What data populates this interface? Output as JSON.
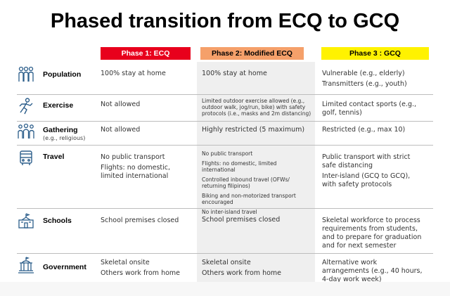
{
  "title": "Phased transition from ECQ to GCQ",
  "phases": [
    "Phase 1: ECQ",
    "Phase 2: Modified ECQ",
    "Phase 3 : GCQ"
  ],
  "colors": {
    "phase1": "#e8001c",
    "phase2": "#f5a06a",
    "phase3": "#fff200",
    "icon": "#2b5d8a"
  },
  "rows": {
    "population": {
      "label": "Population",
      "icon": "people-icon",
      "p1": "100% stay at home",
      "p2": "100% stay at home",
      "p3_1": "Vulnerable (e.g., elderly)",
      "p3_2": "Transmitters (e.g., youth)"
    },
    "exercise": {
      "label": "Exercise",
      "icon": "runner-icon",
      "p1": "Not allowed",
      "p2_1": "Limited outdoor exercise allowed (e.g.,",
      "p2_2": "outdoor walk, jog/run, bike) with safety",
      "p2_3": "protocols (i.e., masks and 2m distancing)",
      "p3_1": "Limited contact sports  (e.g.,",
      "p3_2": "golf, tennis)"
    },
    "gathering": {
      "label": "Gathering",
      "sublabel": "(e.g., religious)",
      "icon": "group-icon",
      "p1": "Not allowed",
      "p2": "Highly restricted (5 maximum)",
      "p3": "Restricted (e.g., max 10)"
    },
    "travel": {
      "label": "Travel",
      "icon": "bus-icon",
      "p1_1": "No public transport",
      "p1_2": "Flights: no domestic,",
      "p1_3": "limited international",
      "p2_1": "No public transport",
      "p2_2": "Flights: no domestic, limited",
      "p2_3": "international",
      "p2_4": "Controlled inbound travel (OFWs/",
      "p2_5": "returning filipinos)",
      "p2_6": "Biking and non-motorized transport",
      "p2_7": "encouraged",
      "p2_8": "No inter-island travel",
      "p3_1": "Public transport with strict",
      "p3_2": "safe distancing",
      "p3_3": "Inter-island (GCQ to GCQ),",
      "p3_4": "with safety protocols"
    },
    "schools": {
      "label": "Schools",
      "icon": "school-icon",
      "p1": "School premises closed",
      "p2": "School premises closed",
      "p3_1": "Skeletal workforce to process",
      "p3_2": "requirements from students,",
      "p3_3": "and to  prepare for graduation",
      "p3_4": "and for next semester"
    },
    "government": {
      "label": "Government",
      "icon": "government-building-icon",
      "p1_1": "Skeletal onsite",
      "p1_2": "Others work from home",
      "p2_1": "Skeletal onsite",
      "p2_2": "Others work from home",
      "p3_1": "Alternative work",
      "p3_2": "arrangements (e.g., 40 hours,",
      "p3_3": "4-day work week)"
    }
  }
}
